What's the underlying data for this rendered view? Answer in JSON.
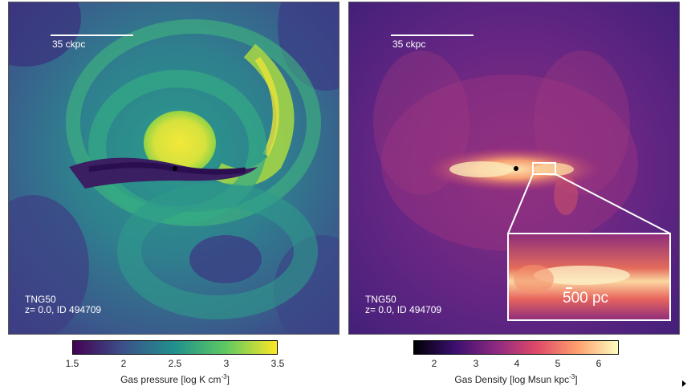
{
  "left_panel": {
    "scale_label": "35 ckpc",
    "sim_name": "TNG50",
    "sim_info": "z= 0.0, ID 494709",
    "colorbar": {
      "ticks": [
        "1.5",
        "2",
        "2.5",
        "3",
        "3.5"
      ],
      "title_prefix": "Gas pressure [log K cm",
      "title_sup": "-3",
      "title_suffix": "]",
      "colors": [
        "#440154",
        "#3b528b",
        "#21918c",
        "#5ec962",
        "#fde725"
      ]
    }
  },
  "right_panel": {
    "scale_label": "35 ckpc",
    "sim_name": "TNG50",
    "sim_info": "z= 0.0, ID 494709",
    "inset_label": "500 pc",
    "colorbar": {
      "ticks": [
        "2",
        "3",
        "4",
        "5",
        "6"
      ],
      "title_prefix": "Gas Density [log Msun kpc",
      "title_sup": "-3",
      "title_suffix": "]",
      "colors": [
        "#000004",
        "#3b0f70",
        "#8c2981",
        "#de4968",
        "#fe9f6d",
        "#fcfdbf"
      ]
    }
  }
}
